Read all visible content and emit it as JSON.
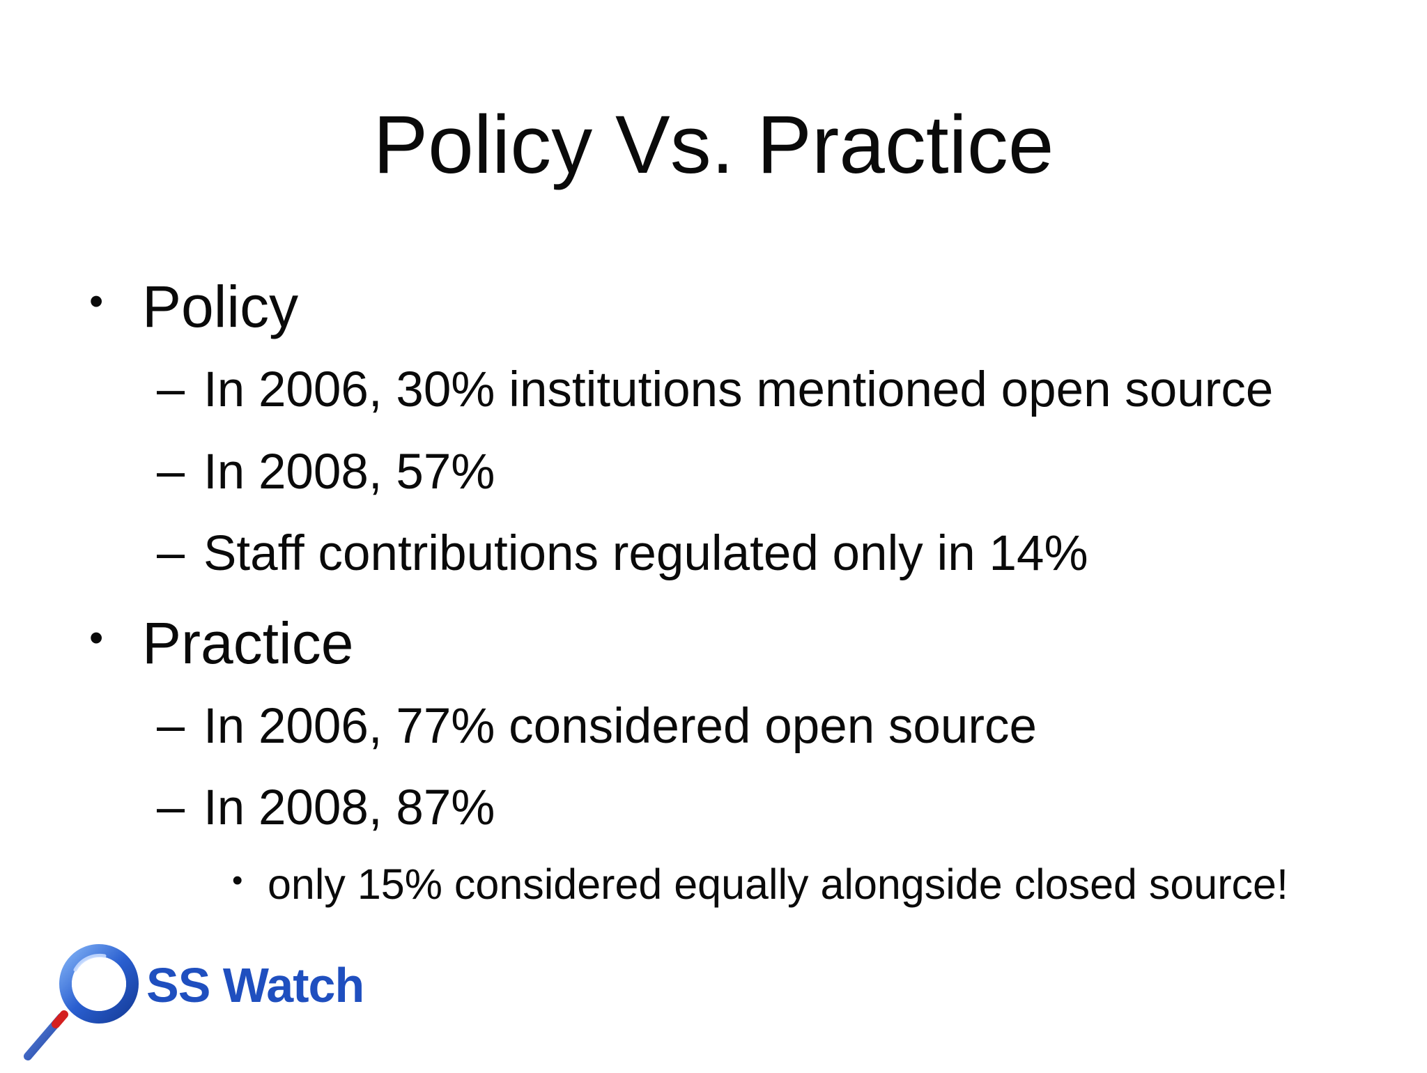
{
  "slide": {
    "title": "Policy Vs. Practice",
    "sections": [
      {
        "heading": "Policy",
        "items": [
          "In 2006, 30% institutions mentioned open source",
          "In 2008, 57%",
          "Staff contributions regulated only in 14%"
        ]
      },
      {
        "heading": "Practice",
        "items": [
          "In 2006, 77% considered open source",
          "In 2008, 87%"
        ],
        "subitems": [
          "only 15% considered equally alongside closed source!"
        ]
      }
    ],
    "bullet_glyph": "•",
    "dash_glyph": "–"
  },
  "logo": {
    "text": "SS Watch",
    "colors": {
      "ring": "#1f4fbf",
      "ring_highlight": "#6fa0f0",
      "text": "#1f4fbf",
      "handle_red": "#d42020",
      "handle_blue": "#2a55c8"
    }
  }
}
